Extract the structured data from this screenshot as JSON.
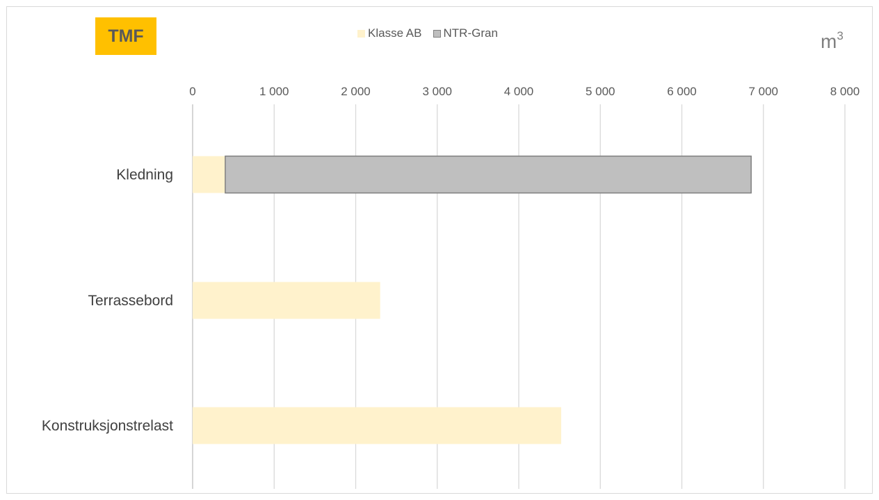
{
  "badge": "TMF",
  "unit_label": "m",
  "unit_superscript": "3",
  "legend": [
    {
      "label": "Klasse AB",
      "color": "#fff2cc",
      "border": "#fff2cc"
    },
    {
      "label": "NTR-Gran",
      "color": "#bfbfbf",
      "border": "#7f7f7f"
    }
  ],
  "chart_data": {
    "type": "bar",
    "orientation": "horizontal",
    "stacked": true,
    "categories": [
      "Kledning",
      "Terrassebord",
      "Konstruksjonstrelast"
    ],
    "series": [
      {
        "name": "Klasse AB",
        "values": [
          400,
          2300,
          4520
        ]
      },
      {
        "name": "NTR-Gran",
        "values": [
          6450,
          0,
          0
        ]
      }
    ],
    "xlim": [
      0,
      8000
    ],
    "xticks": [
      0,
      1000,
      2000,
      3000,
      4000,
      5000,
      6000,
      7000,
      8000
    ],
    "xtick_labels": [
      "0",
      "1 000",
      "2 000",
      "3 000",
      "4 000",
      "5 000",
      "6 000",
      "7 000",
      "8 000"
    ],
    "axis_position": "top",
    "grid": true,
    "legend_position": "top"
  }
}
